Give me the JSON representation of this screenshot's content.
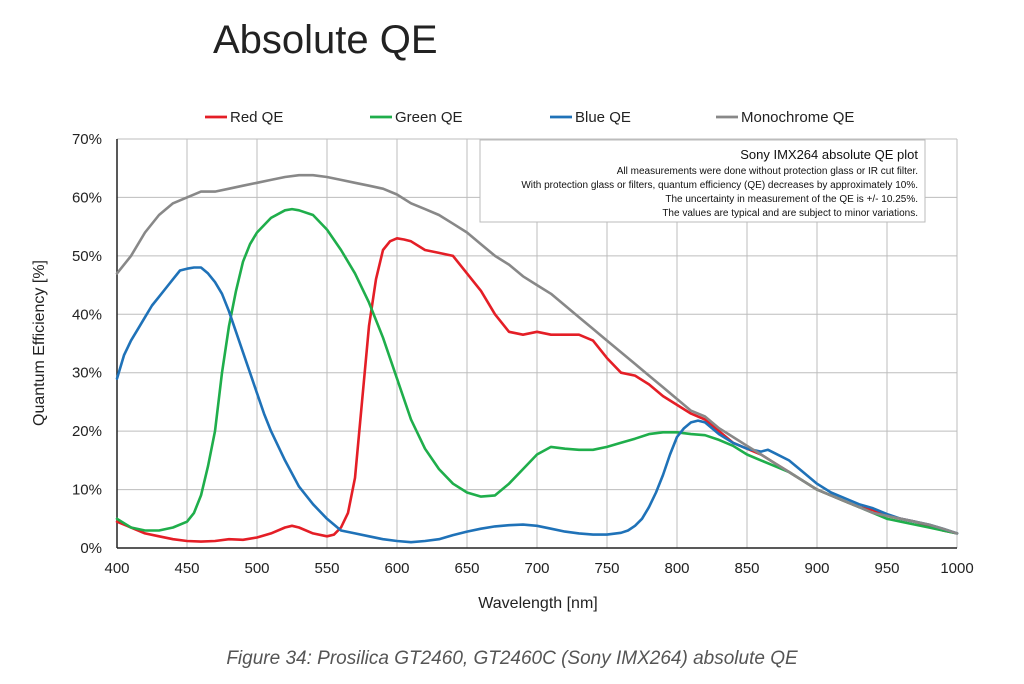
{
  "header": {
    "title": "Absolute QE"
  },
  "caption": "Figure 34: Prosilica GT2460, GT2460C (Sony IMX264) absolute QE",
  "note": {
    "title": "Sony IMX264 absolute QE plot",
    "lines": [
      "All measurements were done without protection glass or IR cut filter.",
      "With protection glass or filters, quantum efficiency (QE) decreases by approximately 10%.",
      "The uncertainty in measurement of the QE is +/- 10.25%.",
      "The values are typical and are subject to minor variations."
    ]
  },
  "chart_data": {
    "type": "line",
    "title": "",
    "xlabel": "Wavelength [nm]",
    "ylabel": "Quantum Efficiency [%]",
    "xlim": [
      400,
      1000
    ],
    "ylim": [
      0,
      70
    ],
    "x_ticks": [
      400,
      450,
      500,
      550,
      600,
      650,
      700,
      750,
      800,
      850,
      900,
      950,
      1000
    ],
    "x_tick_labels": [
      "400",
      "450",
      "500",
      "550",
      "600",
      "650",
      "700",
      "750",
      "800",
      "850",
      "900",
      "950",
      "1000"
    ],
    "y_ticks": [
      0,
      10,
      20,
      30,
      40,
      50,
      60,
      70
    ],
    "y_tick_labels": [
      "0%",
      "10%",
      "20%",
      "30%",
      "40%",
      "50%",
      "60%",
      "70%"
    ],
    "grid": true,
    "legend": "top",
    "series": [
      {
        "name": "Red QE",
        "color": "#e41e26",
        "x": [
          400,
          410,
          420,
          430,
          440,
          450,
          460,
          470,
          480,
          490,
          500,
          510,
          520,
          525,
          530,
          540,
          550,
          555,
          560,
          565,
          570,
          575,
          580,
          585,
          590,
          595,
          600,
          605,
          610,
          620,
          630,
          640,
          650,
          660,
          670,
          680,
          690,
          700,
          710,
          720,
          730,
          740,
          750,
          760,
          770,
          780,
          790,
          800,
          810,
          820,
          830,
          840,
          850,
          860,
          870,
          880,
          890,
          900,
          910,
          920,
          930,
          940,
          950,
          960,
          970,
          980,
          990,
          1000
        ],
        "y": [
          4.5,
          3.5,
          2.5,
          2.0,
          1.5,
          1.2,
          1.1,
          1.2,
          1.5,
          1.4,
          1.8,
          2.5,
          3.5,
          3.8,
          3.5,
          2.5,
          2.0,
          2.3,
          3.5,
          6.0,
          12.0,
          25.0,
          38.0,
          46.0,
          51.0,
          52.5,
          53.0,
          52.8,
          52.5,
          51.0,
          50.5,
          50.0,
          47.0,
          44.0,
          40.0,
          37.0,
          36.5,
          37.0,
          36.5,
          36.5,
          36.5,
          35.5,
          32.5,
          30.0,
          29.5,
          28.0,
          26.0,
          24.5,
          23.0,
          22.0,
          20.0,
          18.0,
          17.0,
          16.0,
          14.5,
          13.0,
          11.5,
          10.0,
          9.0,
          8.0,
          7.0,
          6.5,
          5.5,
          5.0,
          4.5,
          3.8,
          3.0,
          2.5
        ]
      },
      {
        "name": "Green QE",
        "color": "#1fae4b",
        "x": [
          400,
          410,
          420,
          430,
          440,
          450,
          455,
          460,
          465,
          470,
          475,
          480,
          485,
          490,
          495,
          500,
          510,
          520,
          525,
          530,
          540,
          550,
          560,
          570,
          580,
          590,
          600,
          610,
          620,
          630,
          640,
          650,
          660,
          670,
          680,
          690,
          700,
          710,
          720,
          730,
          740,
          750,
          760,
          770,
          780,
          790,
          800,
          810,
          820,
          830,
          840,
          850,
          860,
          870,
          880,
          890,
          900,
          910,
          920,
          930,
          940,
          950,
          960,
          970,
          980,
          990,
          1000
        ],
        "y": [
          5.0,
          3.5,
          3.0,
          3.0,
          3.5,
          4.5,
          6.0,
          9.0,
          14.0,
          20.0,
          30.0,
          38.0,
          44.0,
          49.0,
          52.0,
          54.0,
          56.5,
          57.8,
          58.0,
          57.8,
          57.0,
          54.5,
          51.0,
          47.0,
          42.0,
          36.0,
          29.0,
          22.0,
          17.0,
          13.5,
          11.0,
          9.5,
          8.8,
          9.0,
          11.0,
          13.5,
          16.0,
          17.3,
          17.0,
          16.8,
          16.8,
          17.3,
          18.0,
          18.7,
          19.5,
          19.8,
          19.8,
          19.5,
          19.3,
          18.5,
          17.5,
          16.0,
          15.0,
          14.0,
          13.0,
          11.5,
          10.0,
          9.0,
          8.0,
          7.0,
          6.0,
          5.0,
          4.5,
          4.0,
          3.5,
          3.0,
          2.5
        ]
      },
      {
        "name": "Blue QE",
        "color": "#1f72b8",
        "x": [
          400,
          405,
          410,
          415,
          420,
          425,
          430,
          435,
          440,
          445,
          450,
          455,
          460,
          465,
          470,
          475,
          480,
          485,
          490,
          495,
          500,
          505,
          510,
          520,
          530,
          540,
          550,
          560,
          570,
          580,
          590,
          600,
          610,
          620,
          630,
          640,
          650,
          660,
          670,
          680,
          690,
          700,
          710,
          720,
          730,
          740,
          750,
          760,
          765,
          770,
          775,
          780,
          785,
          790,
          795,
          800,
          805,
          810,
          815,
          820,
          825,
          830,
          840,
          850,
          860,
          865,
          870,
          880,
          890,
          900,
          910,
          920,
          930,
          940,
          950,
          960,
          970,
          980,
          990,
          1000
        ],
        "y": [
          29.0,
          33.0,
          35.5,
          37.5,
          39.5,
          41.5,
          43.0,
          44.5,
          46.0,
          47.5,
          47.8,
          48.0,
          48.0,
          47.0,
          45.5,
          43.5,
          40.5,
          37.0,
          33.5,
          30.0,
          26.5,
          23.0,
          20.0,
          15.0,
          10.5,
          7.5,
          5.0,
          3.0,
          2.5,
          2.0,
          1.5,
          1.2,
          1.0,
          1.2,
          1.5,
          2.2,
          2.8,
          3.3,
          3.7,
          3.9,
          4.0,
          3.8,
          3.3,
          2.8,
          2.5,
          2.3,
          2.3,
          2.6,
          3.0,
          3.8,
          5.0,
          7.0,
          9.5,
          12.5,
          16.0,
          19.0,
          20.5,
          21.5,
          21.8,
          21.5,
          20.5,
          19.5,
          18.0,
          17.0,
          16.5,
          16.8,
          16.2,
          15.0,
          13.0,
          11.0,
          9.5,
          8.5,
          7.5,
          6.8,
          5.8,
          5.0,
          4.5,
          4.0,
          3.3,
          2.5
        ]
      },
      {
        "name": "Monochrome QE",
        "color": "#888888",
        "x": [
          400,
          410,
          420,
          430,
          440,
          450,
          460,
          470,
          480,
          490,
          500,
          510,
          520,
          530,
          540,
          550,
          560,
          570,
          580,
          590,
          600,
          610,
          620,
          630,
          640,
          650,
          660,
          670,
          680,
          690,
          700,
          710,
          720,
          730,
          740,
          750,
          760,
          770,
          780,
          790,
          800,
          810,
          820,
          830,
          840,
          850,
          860,
          870,
          880,
          890,
          900,
          910,
          920,
          930,
          940,
          950,
          960,
          970,
          980,
          990,
          1000
        ],
        "y": [
          47.0,
          50.0,
          54.0,
          57.0,
          59.0,
          60.0,
          61.0,
          61.0,
          61.5,
          62.0,
          62.5,
          63.0,
          63.5,
          63.8,
          63.8,
          63.5,
          63.0,
          62.5,
          62.0,
          61.5,
          60.5,
          59.0,
          58.0,
          57.0,
          55.5,
          54.0,
          52.0,
          50.0,
          48.5,
          46.5,
          45.0,
          43.5,
          41.5,
          39.5,
          37.5,
          35.5,
          33.5,
          31.5,
          29.5,
          27.5,
          25.5,
          23.5,
          22.5,
          20.5,
          19.0,
          17.5,
          16.0,
          14.5,
          13.0,
          11.5,
          10.0,
          9.0,
          8.0,
          7.0,
          6.0,
          5.5,
          5.0,
          4.5,
          4.0,
          3.3,
          2.5
        ]
      }
    ]
  }
}
